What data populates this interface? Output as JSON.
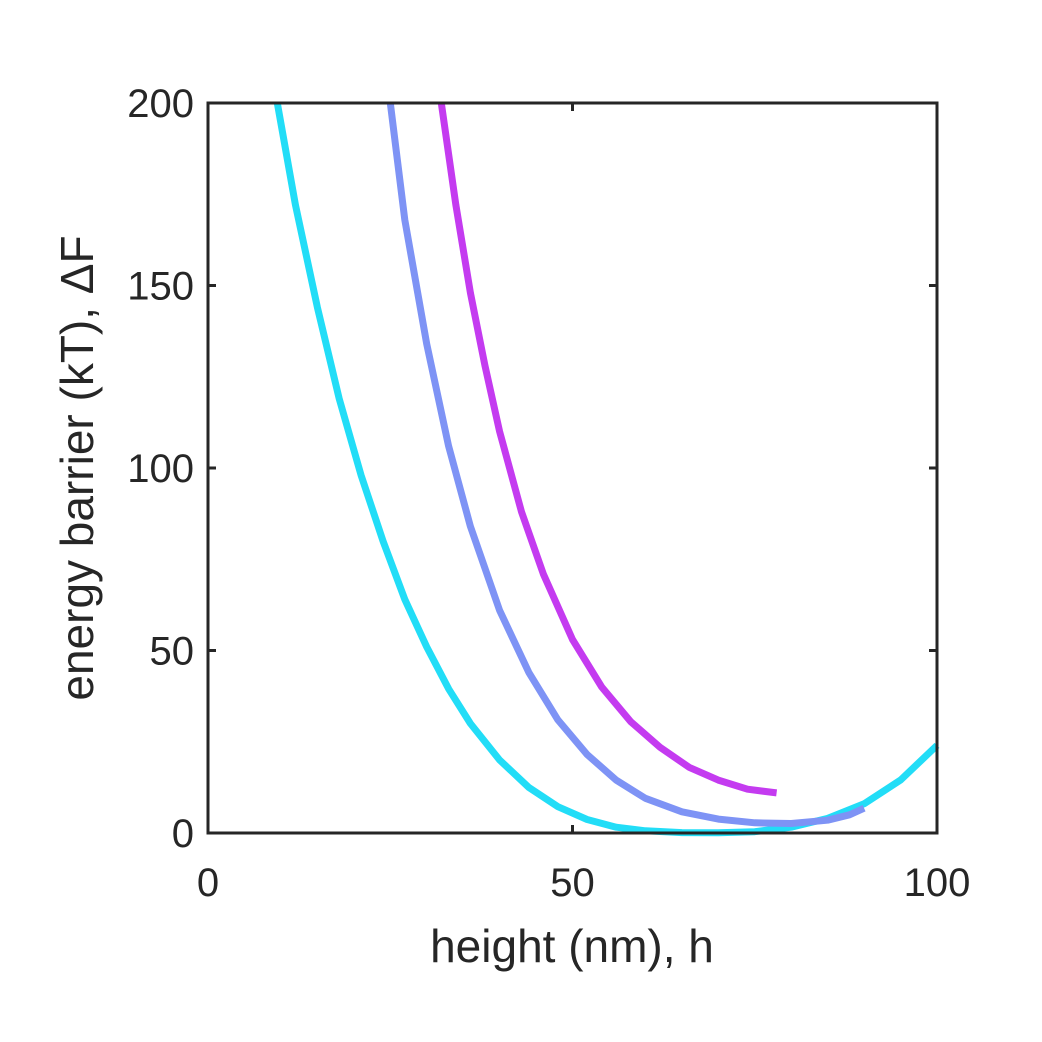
{
  "chart_data": {
    "type": "line",
    "xlabel": "height (nm), h",
    "ylabel": "energy barrier (kT), ΔF",
    "xlim": [
      0,
      100
    ],
    "ylim": [
      0,
      200
    ],
    "xticks": [
      0,
      50,
      100
    ],
    "yticks": [
      0,
      50,
      100,
      150,
      200
    ],
    "grid": false,
    "series": [
      {
        "color": "#22DDF7",
        "x": [
          9.5,
          12,
          15,
          18,
          21,
          24,
          27,
          30,
          33,
          36,
          40,
          44,
          48,
          52,
          56,
          60,
          65,
          70,
          75,
          80,
          85,
          90,
          95,
          100
        ],
        "y": [
          200,
          172,
          144,
          119,
          98,
          80,
          64,
          51,
          39.5,
          30,
          20,
          12.5,
          7.2,
          3.7,
          1.6,
          0.6,
          0.1,
          0.05,
          0.35,
          1.6,
          4,
          8,
          14.5,
          24
        ]
      },
      {
        "color": "#7E93F5",
        "x": [
          25,
          27,
          30,
          33,
          36,
          40,
          44,
          48,
          52,
          56,
          60,
          65,
          70,
          75,
          80,
          85,
          88,
          90
        ],
        "y": [
          200,
          168,
          134,
          106,
          84,
          61,
          44,
          31,
          21.5,
          14.5,
          9.5,
          5.8,
          3.8,
          2.8,
          2.6,
          3.5,
          5,
          6.8
        ]
      },
      {
        "color": "#C43BF0",
        "x": [
          32,
          34,
          36,
          38,
          40,
          43,
          46,
          50,
          54,
          58,
          62,
          66,
          70,
          74,
          78
        ],
        "y": [
          200,
          172,
          148,
          128,
          110,
          88,
          71,
          53,
          40,
          30.5,
          23.5,
          18,
          14.5,
          12,
          11
        ]
      }
    ]
  }
}
